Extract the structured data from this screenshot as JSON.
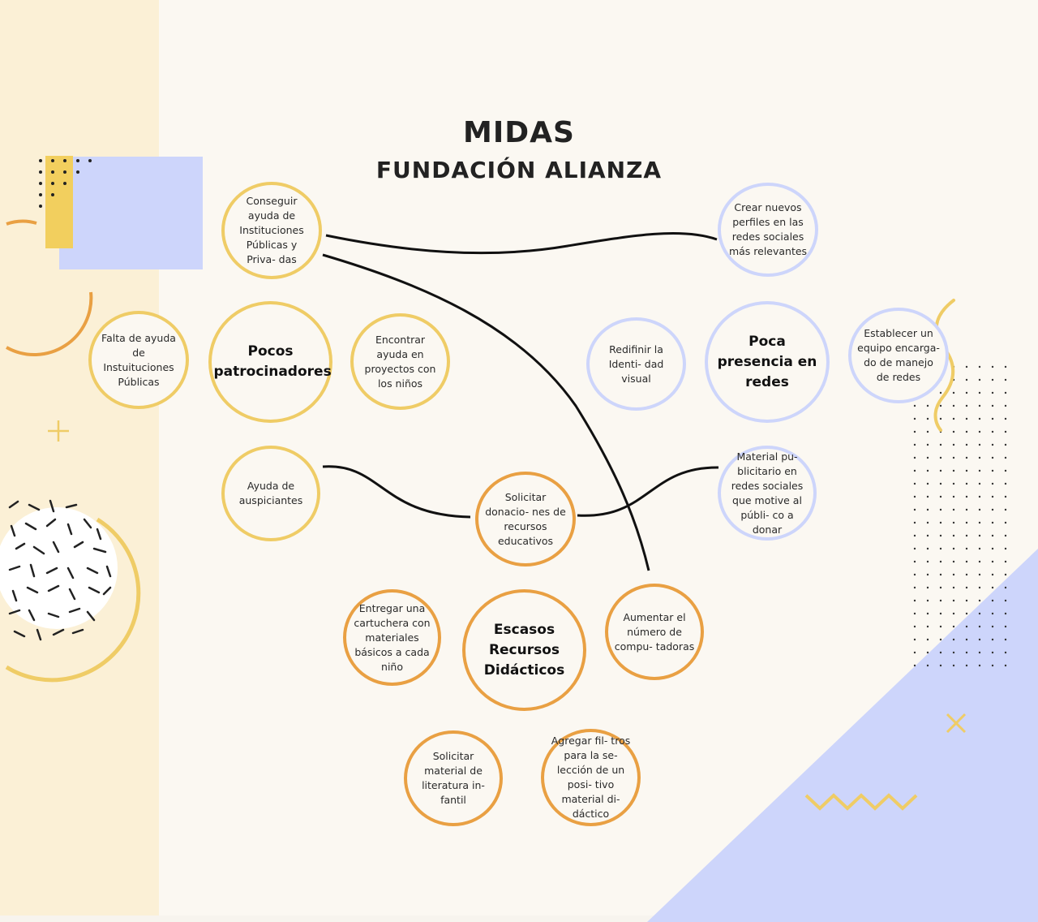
{
  "title": "MIDAS",
  "subtitle": "FUNDACIÓN ALIANZA",
  "colors": {
    "yellow": "#efcc66",
    "blue": "#cdd5fb",
    "orange": "#e9a043",
    "background": "#fbf8f2",
    "left_band": "#fbf0d6"
  },
  "nodes": {
    "conseguir_ayuda": "Conseguir ayuda de Instituciones Públicas y Priva- das",
    "crear_perfiles": "Crear nuevos perfiles en las redes sociales más relevantes",
    "falta_ayuda": "Falta de ayuda de Instuituciones Públicas",
    "pocos_patrocinadores": "Pocos patrocinadores",
    "encontrar_ayuda": "Encontrar ayuda en proyectos con los niños",
    "redefinir_identidad": "Redifinir la Identi- dad visual",
    "poca_presencia": "Poca presencia en redes",
    "establecer_equipo": "Establecer un equipo encarga- do de manejo de redes",
    "ayuda_auspiciantes": "Ayuda de auspiciantes",
    "solicitar_donaciones": "Solicitar donacio- nes de recursos educativos",
    "material_publicitario": "Material pu- blicitario en redes sociales que motive al públi- co a donar",
    "entregar_cartuchera": "Entregar una cartuchera con materiales básicos a cada niño",
    "escasos_recursos": "Escasos Recursos Didácticos",
    "aumentar_computadoras": "Aumentar el número de compu- tadoras",
    "solicitar_literatura": "Solicitar material de literatura in- fantil",
    "agregar_filtros": "Agregar fil- tros para la se- lección de un posi- tivo material di- dáctico"
  }
}
